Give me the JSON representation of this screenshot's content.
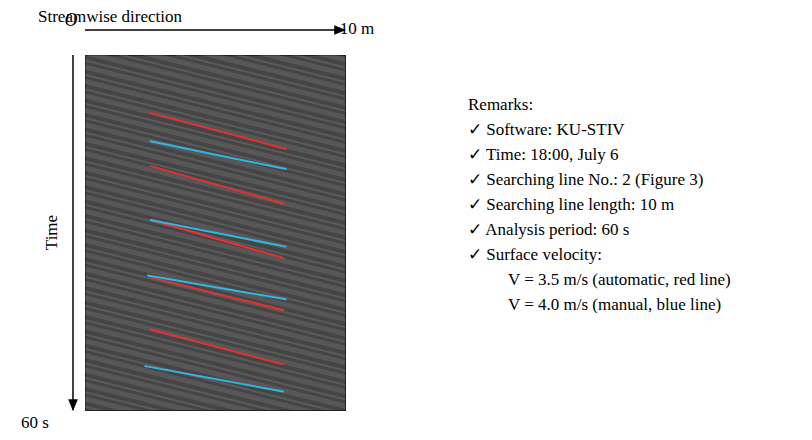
{
  "chart_data": {
    "type": "line",
    "x_label": "Streamwise direction",
    "y_label": "Time",
    "xlim": [
      0,
      10
    ],
    "ylim": [
      0,
      60
    ],
    "xticks": [
      {
        "value": 0,
        "label": "O"
      },
      {
        "value": 10,
        "label": "10 m"
      }
    ],
    "yticks": [
      {
        "value": 60,
        "label": "60 s"
      }
    ],
    "tick_labels": true,
    "grid": false,
    "series": [
      {
        "name": "automatic",
        "color": "#e8312f",
        "line_style": "solid",
        "segments": [
          [
            [
              2.5,
              9.7
            ],
            [
              7.7,
              15.8
            ]
          ],
          [
            [
              2.5,
              18.7
            ],
            [
              7.6,
              25.0
            ]
          ],
          [
            [
              2.5,
              27.8
            ],
            [
              7.6,
              34.2
            ]
          ],
          [
            [
              2.5,
              37.5
            ],
            [
              7.6,
              43.0
            ]
          ],
          [
            [
              2.5,
              46.3
            ],
            [
              7.6,
              52.2
            ]
          ]
        ]
      },
      {
        "name": "manual",
        "color": "#33b5e5",
        "line_style": "solid",
        "segments": [
          [
            [
              2.5,
              14.5
            ],
            [
              7.7,
              19.2
            ]
          ],
          [
            [
              2.5,
              27.8
            ],
            [
              7.7,
              32.3
            ]
          ],
          [
            [
              2.4,
              37.2
            ],
            [
              7.7,
              41.2
            ]
          ],
          [
            [
              2.3,
              52.5
            ],
            [
              7.6,
              56.8
            ]
          ]
        ]
      }
    ],
    "remarks": {
      "title": "Remarks:",
      "items": [
        "✓ Software: KU-STIV",
        "✓ Time: 18:00, July 6",
        "✓ Searching line No.: 2 (Figure 3)",
        "✓ Searching line length: 10 m",
        "✓ Analysis period: 60 s",
        "✓ Surface velocity:"
      ],
      "sub_items": [
        "V = 3.5 m/s (automatic, red line)",
        "V = 4.0 m/s (manual, blue line)"
      ]
    }
  }
}
